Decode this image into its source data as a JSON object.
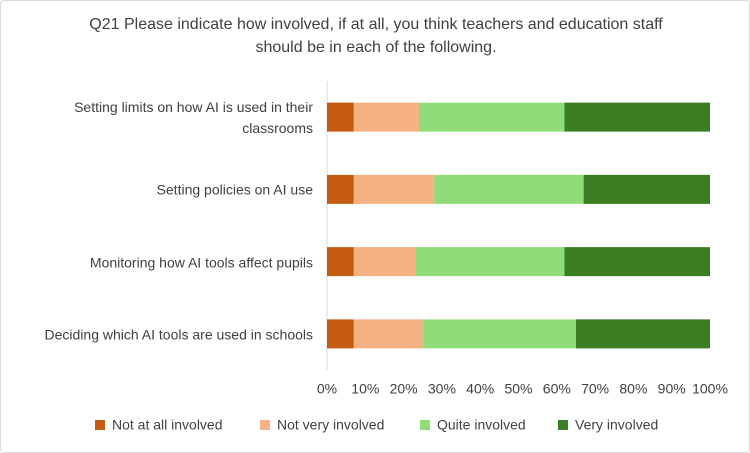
{
  "chart_data": {
    "type": "stacked-bar-horizontal",
    "title": "Q21 Please indicate how involved, if at all, you think teachers and education staff should be in each of the following.",
    "categories": [
      "Setting limits on how AI is used in their classrooms",
      "Setting policies on AI use",
      "Monitoring how AI tools affect pupils",
      "Deciding which AI tools are used in schools"
    ],
    "series": [
      {
        "name": "Not at all involved",
        "color": "#c55a11",
        "values": [
          7,
          7,
          7,
          7
        ]
      },
      {
        "name": "Not very involved",
        "color": "#f4b183",
        "values": [
          17,
          21,
          16,
          18
        ]
      },
      {
        "name": "Quite involved",
        "color": "#8fdc78",
        "values": [
          38,
          39,
          39,
          40
        ]
      },
      {
        "name": "Very involved",
        "color": "#3a7d22",
        "values": [
          38,
          33,
          38,
          35
        ]
      }
    ],
    "xlim": [
      0,
      100
    ],
    "xticks": [
      {
        "value": 0,
        "label": "0%"
      },
      {
        "value": 10,
        "label": "10%"
      },
      {
        "value": 20,
        "label": "20%"
      },
      {
        "value": 30,
        "label": "30%"
      },
      {
        "value": 40,
        "label": "40%"
      },
      {
        "value": 50,
        "label": "50%"
      },
      {
        "value": 60,
        "label": "60%"
      },
      {
        "value": 70,
        "label": "70%"
      },
      {
        "value": 80,
        "label": "80%"
      },
      {
        "value": 90,
        "label": "90%"
      },
      {
        "value": 100,
        "label": "100%"
      }
    ],
    "legend": "bottom"
  }
}
